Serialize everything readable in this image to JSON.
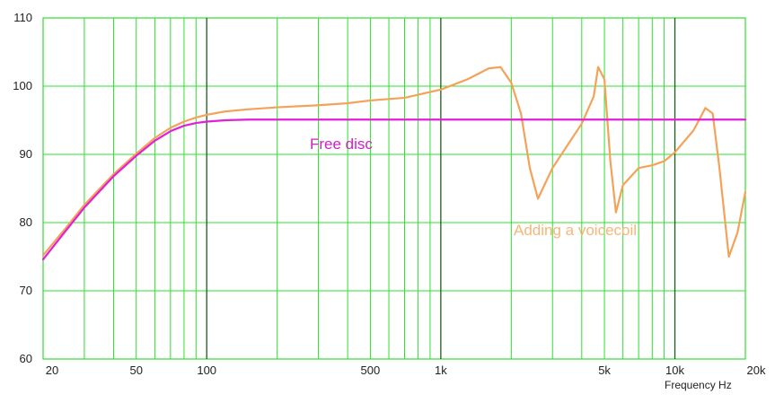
{
  "chart_data": {
    "type": "line",
    "x_scale": "log",
    "xlim": [
      20,
      20000
    ],
    "ylim": [
      60,
      110
    ],
    "xlabel": "Frequency Hz",
    "ylabel": "",
    "title": "",
    "grid": true,
    "x_tick_labels": [
      {
        "value": 20,
        "label": "20"
      },
      {
        "value": 50,
        "label": "50"
      },
      {
        "value": 100,
        "label": "100"
      },
      {
        "value": 500,
        "label": "500"
      },
      {
        "value": 1000,
        "label": "1k"
      },
      {
        "value": 5000,
        "label": "5k"
      },
      {
        "value": 10000,
        "label": "10k"
      },
      {
        "value": 20000,
        "label": "20k"
      }
    ],
    "y_tick_labels": [
      {
        "value": 60,
        "label": "60"
      },
      {
        "value": 70,
        "label": "70"
      },
      {
        "value": 80,
        "label": "80"
      },
      {
        "value": 90,
        "label": "90"
      },
      {
        "value": 100,
        "label": "100"
      },
      {
        "value": 110,
        "label": "110"
      }
    ],
    "series": [
      {
        "name": "Free disc",
        "color": "#e020d8",
        "x": [
          20,
          25,
          30,
          40,
          50,
          60,
          70,
          80,
          90,
          100,
          120,
          150,
          200,
          500,
          1000,
          5000,
          10000,
          20000
        ],
        "y": [
          74.6,
          78.8,
          82.2,
          86.8,
          89.8,
          92.0,
          93.4,
          94.2,
          94.6,
          94.8,
          95.0,
          95.1,
          95.1,
          95.1,
          95.1,
          95.1,
          95.1,
          95.1
        ]
      },
      {
        "name": "Adding a voicecoil",
        "color": "#f4a259",
        "x": [
          20,
          25,
          30,
          40,
          50,
          60,
          70,
          80,
          90,
          100,
          120,
          150,
          200,
          300,
          400,
          500,
          700,
          1000,
          1300,
          1600,
          1800,
          2000,
          2200,
          2400,
          2600,
          3000,
          3500,
          4000,
          4500,
          4700,
          5000,
          5300,
          5600,
          6000,
          7000,
          8000,
          9000,
          10000,
          12000,
          13500,
          14500,
          15500,
          17000,
          18500,
          20000
        ],
        "y": [
          75.2,
          79.2,
          82.6,
          87.1,
          90.1,
          92.4,
          93.9,
          94.8,
          95.4,
          95.8,
          96.3,
          96.6,
          96.9,
          97.2,
          97.5,
          97.9,
          98.3,
          99.5,
          101.0,
          102.6,
          102.8,
          100.5,
          96.0,
          88.0,
          83.5,
          88.0,
          91.5,
          94.5,
          98.5,
          102.8,
          101.0,
          89.0,
          81.5,
          85.5,
          88.0,
          88.4,
          89.0,
          90.3,
          93.5,
          96.8,
          96.0,
          88.0,
          75.0,
          78.5,
          84.5
        ]
      }
    ]
  },
  "annotations": {
    "free_disc": "Free disc",
    "voicecoil": "Adding a voicecoil"
  }
}
